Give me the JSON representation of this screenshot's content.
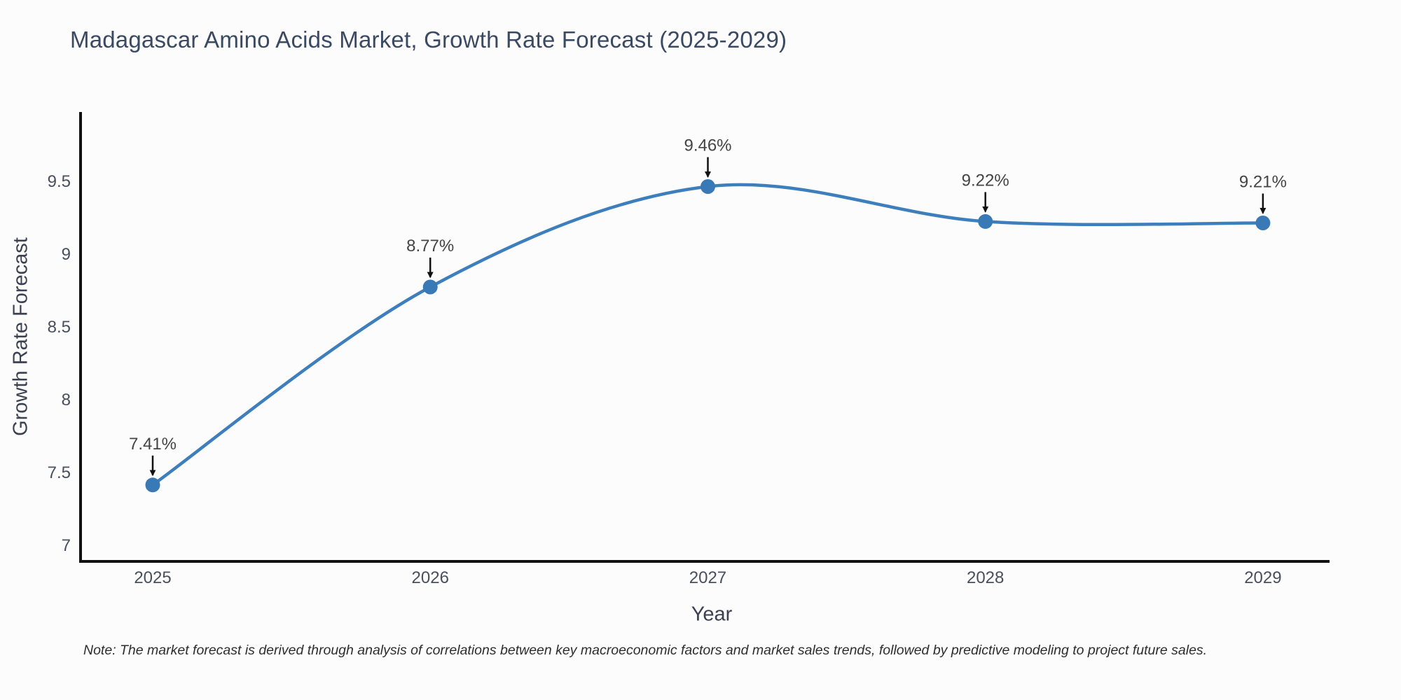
{
  "note": "Note: The market forecast is derived through analysis of correlations between key macroeconomic factors and market sales trends, followed by predictive modeling to project future sales.",
  "chart_data": {
    "type": "line",
    "title": "Madagascar Amino Acids Market, Growth Rate Forecast (2025-2029)",
    "xlabel": "Year",
    "ylabel": "Growth Rate Forecast",
    "x": [
      2025,
      2026,
      2027,
      2028,
      2029
    ],
    "y": [
      7.41,
      8.77,
      9.46,
      9.22,
      9.21
    ],
    "point_labels": [
      "7.41%",
      "8.77%",
      "9.46%",
      "9.22%",
      "9.21%"
    ],
    "x_tick_labels": [
      "2025",
      "2026",
      "2027",
      "2028",
      "2029"
    ],
    "y_tick_values": [
      7,
      7.5,
      8,
      8.5,
      9,
      9.5
    ],
    "y_tick_labels": [
      "7",
      "7.5",
      "8",
      "8.5",
      "9",
      "9.5"
    ],
    "xlim": [
      2024.74,
      2029.24
    ],
    "ylim": [
      6.885,
      9.972
    ],
    "grid": false,
    "legend_position": "none",
    "curve": "spline",
    "colors": {
      "line": "#3d7ebc",
      "marker": "#3879b6",
      "axis": "#111111",
      "tick_text": "#4a4f5c",
      "annotation_text": "#444444",
      "arrow": "#111111"
    }
  }
}
